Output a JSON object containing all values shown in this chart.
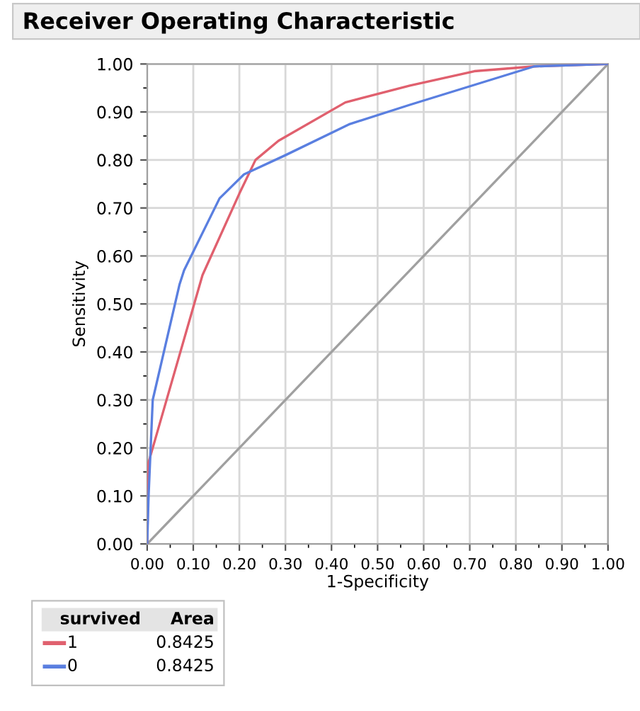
{
  "chart_data": {
    "type": "line",
    "title": "Receiver Operating Characteristic",
    "xlabel": "1-Specificity",
    "ylabel": "Sensitivity",
    "legend_title": "survived",
    "legend": "bottom",
    "grid": true,
    "xlim": [
      0,
      1
    ],
    "ylim": [
      0,
      1
    ],
    "xticks": [
      {
        "value": 0,
        "label": "0.00"
      },
      {
        "value": 0.1,
        "label": "0.10"
      },
      {
        "value": 0.2,
        "label": "0.20"
      },
      {
        "value": 0.3,
        "label": "0.30"
      },
      {
        "value": 0.4,
        "label": "0.40"
      },
      {
        "value": 0.5,
        "label": "0.50"
      },
      {
        "value": 0.6,
        "label": "0.60"
      },
      {
        "value": 0.7,
        "label": "0.70"
      },
      {
        "value": 0.8,
        "label": "0.80"
      },
      {
        "value": 0.9,
        "label": "0.90"
      },
      {
        "value": 1,
        "label": "1.00"
      }
    ],
    "yticks": [
      {
        "value": 0,
        "label": "0.00"
      },
      {
        "value": 0.1,
        "label": "0.10"
      },
      {
        "value": 0.2,
        "label": "0.20"
      },
      {
        "value": 0.3,
        "label": "0.30"
      },
      {
        "value": 0.4,
        "label": "0.40"
      },
      {
        "value": 0.5,
        "label": "0.50"
      },
      {
        "value": 0.6,
        "label": "0.60"
      },
      {
        "value": 0.7,
        "label": "0.70"
      },
      {
        "value": 0.8,
        "label": "0.80"
      },
      {
        "value": 0.9,
        "label": "0.90"
      },
      {
        "value": 1,
        "label": "1.00"
      }
    ],
    "series": [
      {
        "name": null,
        "color": "#a0a0a0",
        "x": [
          0,
          1
        ],
        "values": [
          0,
          1
        ]
      },
      {
        "name": "1",
        "color": "#e0606e",
        "x": [
          0,
          0.003,
          0.12,
          0.2,
          0.235,
          0.285,
          0.43,
          0.57,
          0.71,
          0.84,
          1
        ],
        "values": [
          0,
          0.17,
          0.56,
          0.73,
          0.8,
          0.84,
          0.92,
          0.955,
          0.985,
          0.995,
          1
        ]
      },
      {
        "name": "0",
        "color": "#5a7fe0",
        "x": [
          0,
          0.003,
          0.012,
          0.07,
          0.08,
          0.157,
          0.21,
          0.3,
          0.44,
          0.57,
          0.84,
          1
        ],
        "values": [
          0,
          0.1,
          0.3,
          0.54,
          0.57,
          0.72,
          0.77,
          0.81,
          0.875,
          0.915,
          0.995,
          1
        ]
      }
    ],
    "annotations": [
      "Area",
      "0.8425",
      "0.8425"
    ]
  }
}
